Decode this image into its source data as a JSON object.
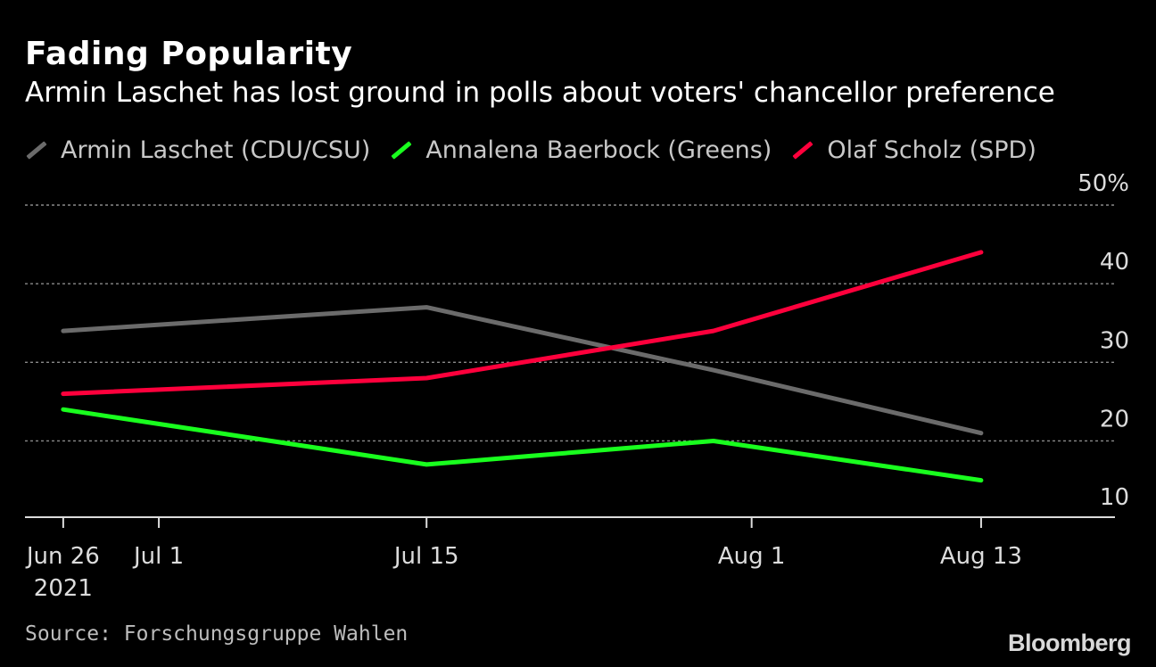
{
  "header": {
    "title": "Fading Popularity",
    "subtitle": "Armin Laschet has lost ground in polls about voters' chancellor preference"
  },
  "legend": [
    {
      "label": "Armin Laschet (CDU/CSU)",
      "color": "#6b6b6b"
    },
    {
      "label": "Annalena Baerbock (Greens)",
      "color": "#19ff1e"
    },
    {
      "label": "Olaf Scholz (SPD)",
      "color": "#ff003c"
    }
  ],
  "footer": {
    "source": "Source: Forschungsgruppe Wahlen",
    "brand": "Bloomberg"
  },
  "chart_data": {
    "type": "line",
    "title": "Fading Popularity",
    "subtitle": "Armin Laschet has lost ground in polls about voters' chancellor preference",
    "x_dates": [
      "2021-06-26",
      "2021-07-15",
      "2021-07-30",
      "2021-08-13"
    ],
    "series": [
      {
        "name": "Armin Laschet (CDU/CSU)",
        "color": "#6b6b6b",
        "values": [
          34,
          37,
          29,
          21
        ]
      },
      {
        "name": "Annalena Baerbock (Greens)",
        "color": "#19ff1e",
        "values": [
          24,
          17,
          20,
          15
        ]
      },
      {
        "name": "Olaf Scholz (SPD)",
        "color": "#ff003c",
        "values": [
          26,
          28,
          34,
          44
        ]
      }
    ],
    "x_ticks": [
      {
        "date": "2021-06-26",
        "label": "Jun 26",
        "sublabel": "2021"
      },
      {
        "date": "2021-07-01",
        "label": "Jul 1"
      },
      {
        "date": "2021-07-15",
        "label": "Jul 15"
      },
      {
        "date": "2021-08-01",
        "label": "Aug 1"
      },
      {
        "date": "2021-08-13",
        "label": "Aug 13"
      }
    ],
    "y_ticks": [
      {
        "value": 50,
        "label": "50%"
      },
      {
        "value": 40,
        "label": "40"
      },
      {
        "value": 30,
        "label": "30"
      },
      {
        "value": 20,
        "label": "20"
      },
      {
        "value": 10,
        "label": "10"
      }
    ],
    "gridlines": [
      50,
      40,
      30,
      20
    ],
    "ylim": [
      10.3,
      50
    ],
    "xlim": [
      "2021-06-24",
      "2021-08-20"
    ],
    "xlabel": "",
    "ylabel": "",
    "grid": true,
    "legend_position": "top-left"
  }
}
